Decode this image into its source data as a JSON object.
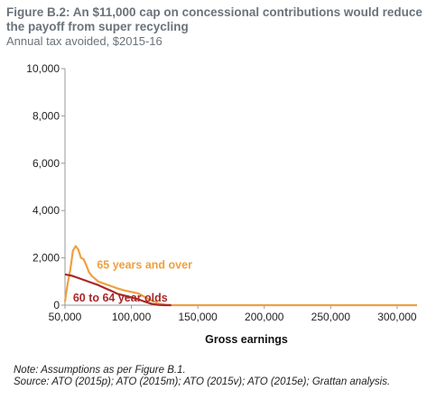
{
  "header": {
    "title": "Figure B.2: An $11,000 cap on concessional contributions would reduce the payoff from super recycling",
    "subtitle": "Annual tax avoided, $2015-16"
  },
  "notes": {
    "line1": "Note: Assumptions as per Figure B.1.",
    "line2": "Source: ATO (2015p); ATO (2015m); ATO (2015v); ATO (2015e); Grattan analysis."
  },
  "chart_data": {
    "type": "line",
    "title": "Figure B.2: An $11,000 cap on concessional contributions would reduce the payoff from super recycling",
    "subtitle": "Annual tax avoided, $2015-16",
    "xlabel": "Gross earnings",
    "ylabel": "",
    "xlim": [
      50000,
      315000
    ],
    "ylim": [
      0,
      10000
    ],
    "x_ticks": [
      50000,
      100000,
      150000,
      200000,
      250000,
      300000
    ],
    "x_tick_labels": [
      "50,000",
      "100,000",
      "150,000",
      "200,000",
      "250,000",
      "300,000"
    ],
    "y_ticks": [
      0,
      2000,
      4000,
      6000,
      8000,
      10000
    ],
    "y_tick_labels": [
      "0",
      "2,000",
      "4,000",
      "6,000",
      "8,000",
      "10,000"
    ],
    "grid": false,
    "colors": {
      "65 years and over": "#f0a040",
      "60 to 64 year olds": "#a8282a"
    },
    "series": [
      {
        "name": "65 years and over",
        "color": "#f0a040",
        "x": [
          50000,
          52000,
          54000,
          56000,
          58000,
          60000,
          62000,
          64000,
          66000,
          68000,
          70000,
          72000,
          75000,
          80000,
          85000,
          90000,
          95000,
          100000,
          105000,
          110000,
          115000,
          120000,
          125000,
          130000,
          140000,
          200000,
          250000,
          315000
        ],
        "y": [
          150,
          900,
          1500,
          2300,
          2500,
          2350,
          2000,
          1950,
          1700,
          1400,
          1250,
          1150,
          1000,
          900,
          800,
          700,
          620,
          560,
          500,
          350,
          200,
          80,
          20,
          0,
          0,
          0,
          0,
          0
        ]
      },
      {
        "name": "60 to 64 year olds",
        "color": "#a8282a",
        "x": [
          50000,
          55000,
          60000,
          65000,
          70000,
          75000,
          80000,
          85000,
          90000,
          95000,
          100000,
          105000,
          110000,
          115000,
          120000,
          125000,
          130000
        ],
        "y": [
          1300,
          1250,
          1150,
          1050,
          950,
          850,
          720,
          600,
          470,
          400,
          330,
          250,
          150,
          60,
          10,
          0,
          0
        ]
      }
    ],
    "annotations": [
      {
        "text": "65 years and over",
        "x": 74000,
        "y": 1550,
        "series": "65 years and over"
      },
      {
        "text": "60 to 64 year olds",
        "x": 56000,
        "y": 150,
        "series": "60 to 64 year olds"
      }
    ]
  }
}
